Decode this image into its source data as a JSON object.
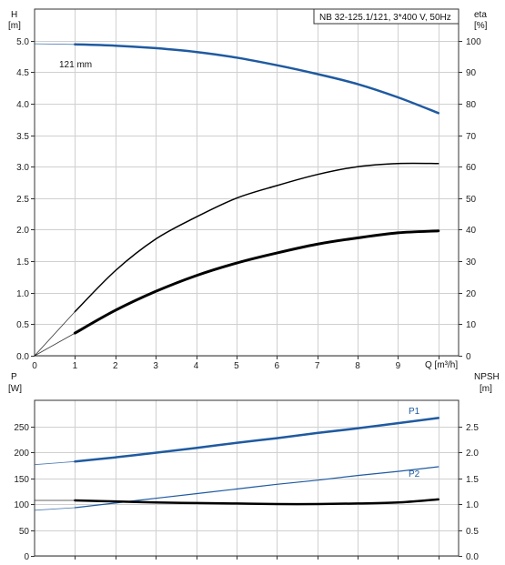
{
  "legend_box": "NB 32-125.1/121, 3*400 V, 50Hz",
  "colors": {
    "blue": "#1f5aa0",
    "black": "#000000",
    "grid": "#d0d0d0"
  },
  "chart_data": [
    {
      "type": "line",
      "title": "NB 32-125.1/121, 3*400 V, 50Hz",
      "x_label": "Q [m³/h]",
      "x_ticks": [
        "0",
        "1",
        "2",
        "3",
        "4",
        "5",
        "6",
        "7",
        "8",
        "9"
      ],
      "xlim": [
        0,
        10.5
      ],
      "left_axis": {
        "label_top": "H",
        "label_unit": "[m]",
        "ylim": [
          0,
          5.5
        ],
        "ticks": [
          "0.0",
          "0.5",
          "1.0",
          "1.5",
          "2.0",
          "2.5",
          "3.0",
          "3.5",
          "4.0",
          "4.5",
          "5.0"
        ]
      },
      "right_axis": {
        "label_top": "eta",
        "label_unit": "[%]",
        "ylim": [
          0,
          110
        ],
        "ticks": [
          "0",
          "10",
          "20",
          "30",
          "40",
          "50",
          "60",
          "70",
          "80",
          "90",
          "100"
        ]
      },
      "series": [
        {
          "name": "121 mm",
          "axis": "left",
          "color": "#1f5aa0",
          "width": 2.5,
          "x": [
            1,
            2,
            3,
            4,
            5,
            6,
            7,
            8,
            9,
            10
          ],
          "y": [
            4.94,
            4.92,
            4.88,
            4.82,
            4.73,
            4.61,
            4.47,
            4.31,
            4.1,
            3.85
          ],
          "ext_x": [
            0,
            1
          ],
          "ext_y": [
            4.95,
            4.94
          ]
        },
        {
          "name": "",
          "axis": "right",
          "color": "#000000",
          "width": 1.5,
          "x": [
            1,
            2,
            3,
            4,
            5,
            6,
            7,
            8,
            9,
            10
          ],
          "y": [
            14,
            27,
            37,
            44,
            50,
            54,
            57.5,
            60,
            61,
            61
          ],
          "ext_x": [
            0,
            1
          ],
          "ext_y": [
            0,
            14
          ]
        },
        {
          "name": "",
          "axis": "left",
          "color": "#000000",
          "width": 3,
          "x": [
            1,
            2,
            3,
            4,
            5,
            6,
            7,
            8,
            9,
            10
          ],
          "y": [
            0.36,
            0.72,
            1.02,
            1.27,
            1.47,
            1.63,
            1.77,
            1.87,
            1.95,
            1.98
          ],
          "ext_x": [
            0,
            1
          ],
          "ext_y": [
            0,
            0.36
          ]
        }
      ]
    },
    {
      "type": "line",
      "x_label": "",
      "x_ticks": [],
      "xlim": [
        0,
        10.5
      ],
      "left_axis": {
        "label_top": "P",
        "label_unit": "[W]",
        "ylim": [
          0,
          300
        ],
        "ticks": [
          "0",
          "50",
          "100",
          "150",
          "200",
          "250"
        ],
        "tick_values": [
          0,
          50,
          100,
          150,
          200,
          250
        ]
      },
      "right_axis": {
        "label_top": "NPSH",
        "label_unit": "[m]",
        "ylim": [
          0,
          3.0
        ],
        "ticks": [
          "0.0",
          "0.5",
          "1.0",
          "1.5",
          "2.0",
          "2.5"
        ],
        "tick_values": [
          0,
          0.5,
          1.0,
          1.5,
          2.0,
          2.5
        ]
      },
      "series": [
        {
          "name": "P1",
          "axis": "left",
          "color": "#1f5aa0",
          "width": 2.5,
          "x": [
            1,
            2,
            3,
            4,
            5,
            6,
            7,
            8,
            9,
            10
          ],
          "y": [
            182,
            190,
            199,
            208,
            218,
            227,
            237,
            246,
            256,
            266
          ],
          "ext_x": [
            0,
            1
          ],
          "ext_y": [
            176,
            182
          ]
        },
        {
          "name": "P2",
          "axis": "left",
          "color": "#1f5aa0",
          "width": 1.2,
          "x": [
            1,
            2,
            3,
            4,
            5,
            6,
            7,
            8,
            9,
            10
          ],
          "y": [
            93,
            102,
            111,
            120,
            129,
            138,
            146,
            155,
            163,
            172
          ],
          "ext_x": [
            0,
            1
          ],
          "ext_y": [
            88,
            93
          ]
        },
        {
          "name": "",
          "axis": "right",
          "color": "#000000",
          "width": 2.5,
          "x": [
            1,
            2,
            3,
            4,
            5,
            6,
            7,
            8,
            9,
            10
          ],
          "y": [
            1.07,
            1.05,
            1.03,
            1.02,
            1.01,
            1.0,
            1.0,
            1.01,
            1.03,
            1.09
          ],
          "ext_x": [
            0,
            1
          ],
          "ext_y": [
            1.07,
            1.07
          ]
        }
      ]
    }
  ]
}
